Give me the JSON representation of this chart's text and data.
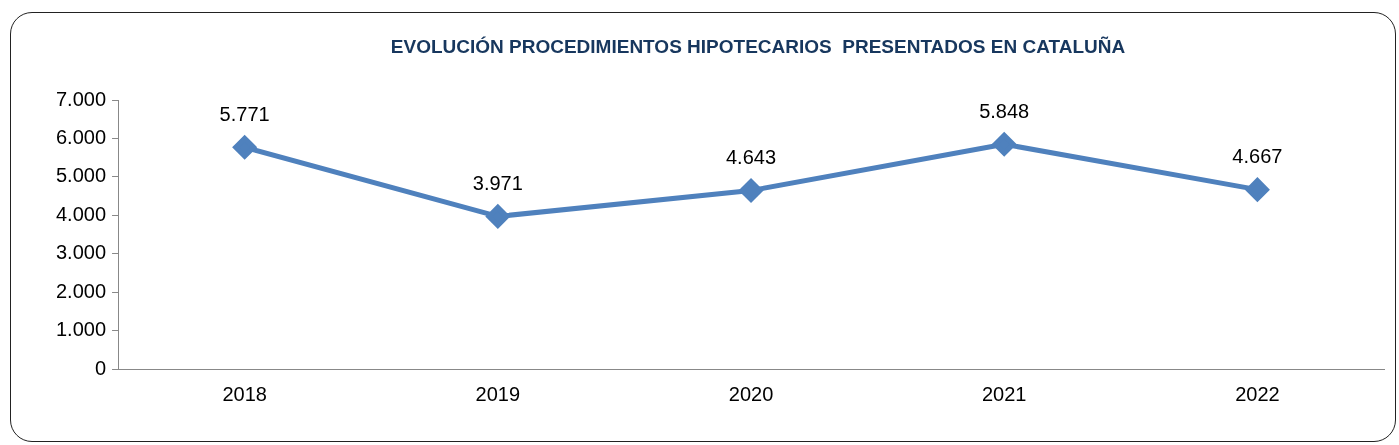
{
  "chart_data": {
    "type": "line",
    "title": "EVOLUCIÓN PROCEDIMIENTOS HIPOTECARIOS  PRESENTADOS EN CATALUÑA",
    "categories": [
      "2018",
      "2019",
      "2020",
      "2021",
      "2022"
    ],
    "series": [
      {
        "color": "#4f81bd",
        "values": [
          5771,
          3971,
          4643,
          5848,
          4667
        ],
        "value_labels": [
          "5.771",
          "3.971",
          "4.643",
          "5.848",
          "4.667"
        ]
      }
    ],
    "ylim": [
      0,
      7000
    ],
    "yticks": [
      {
        "value": 0,
        "label": "0"
      },
      {
        "value": 1000,
        "label": "1.000"
      },
      {
        "value": 2000,
        "label": "2.000"
      },
      {
        "value": 3000,
        "label": "3.000"
      },
      {
        "value": 4000,
        "label": "4.000"
      },
      {
        "value": 5000,
        "label": "5.000"
      },
      {
        "value": 6000,
        "label": "6.000"
      },
      {
        "value": 7000,
        "label": "7.000"
      }
    ],
    "grid": false,
    "legend": false,
    "marker": "diamond",
    "line_style": "solid"
  }
}
